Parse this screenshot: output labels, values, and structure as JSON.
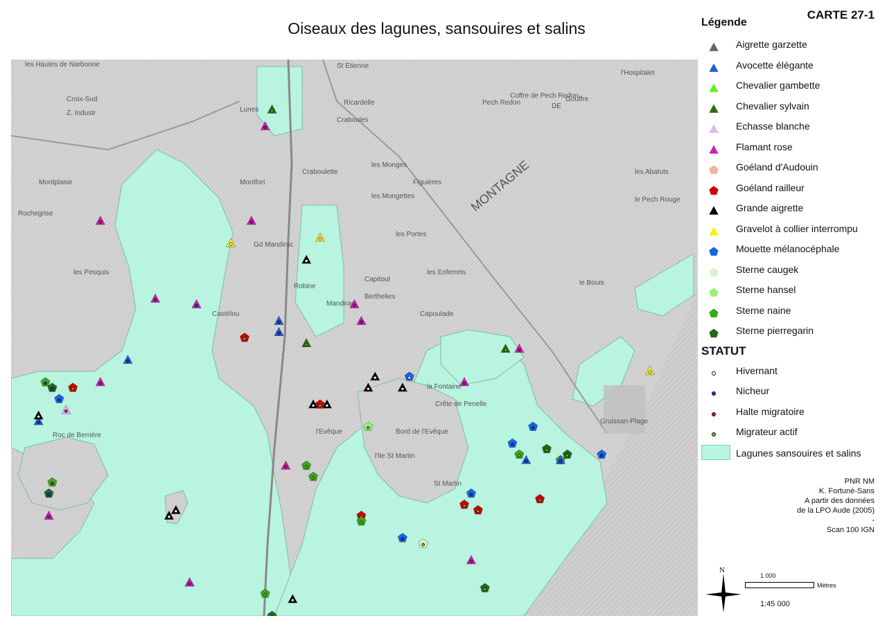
{
  "title": "Oiseaux des lagunes, sansouires et salins",
  "map_id": "CARTE 27-1",
  "legend": {
    "heading": "Légende",
    "species": [
      {
        "label": "Aigrette garzette",
        "shape": "triangle",
        "color": "#666666"
      },
      {
        "label": "Avocette élégante",
        "shape": "triangle",
        "color": "#1f5fd6"
      },
      {
        "label": "Chevalier gambette",
        "shape": "triangle",
        "color": "#66ee22"
      },
      {
        "label": "Chevalier sylvain",
        "shape": "triangle",
        "color": "#2f6a10"
      },
      {
        "label": "Echasse blanche",
        "shape": "triangle",
        "color": "#e5b6f2"
      },
      {
        "label": "Flamant rose",
        "shape": "triangle",
        "color": "#d21db5"
      },
      {
        "label": "Goéland d'Audouin",
        "shape": "pentagon",
        "color": "#f6b0a6"
      },
      {
        "label": "Goéland railleur",
        "shape": "pentagon",
        "color": "#cc0000"
      },
      {
        "label": "Grande aigrette",
        "shape": "triangle",
        "color": "#000000"
      },
      {
        "label": "Gravelot à collier interrompu",
        "shape": "triangle",
        "color": "#ffee00"
      },
      {
        "label": "Mouette mélanocéphale",
        "shape": "pentagon",
        "color": "#1466e6"
      },
      {
        "label": "Sterne caugek",
        "shape": "pentagon",
        "color": "#d8f5c8"
      },
      {
        "label": "Sterne hansel",
        "shape": "pentagon",
        "color": "#99f07a"
      },
      {
        "label": "Sterne naine",
        "shape": "pentagon",
        "color": "#3aa81a"
      },
      {
        "label": "Sterne pierregarin",
        "shape": "pentagon",
        "color": "#25661a"
      }
    ],
    "status_heading": "STATUT",
    "statuses": [
      {
        "label": "Hivernant",
        "color": "#ffffff"
      },
      {
        "label": "Nicheur",
        "color": "#1a3ccf"
      },
      {
        "label": "Halte migratoire",
        "color": "#b01590"
      },
      {
        "label": "Migrateur actif",
        "color": "#6ec020"
      }
    ],
    "area_label": "Lagunes sansouires et salins",
    "area_color": "#b8f4e0"
  },
  "credits": [
    "PNR NM",
    "K. Fortuné-Sans",
    "A partir des données",
    "de la LPO Aude (2005)",
    "-",
    "Scan 100 IGN"
  ],
  "north_label": "N",
  "scale": {
    "distance": "1 000",
    "unit": "Mètres",
    "ratio": "1:45 000"
  },
  "map_labels": [
    "les Hautes de Narbonne",
    "Croix-Sud",
    "Z. Industr",
    "Lunes",
    "St Etienne",
    "Ricardelle",
    "Craboules",
    "Gouffre",
    "l'Hospitalet",
    "Pech Redon",
    "Coffre de Pech Redon",
    "DE",
    "les Monges",
    "Figuières",
    "les Mongettes",
    "Montplaisir",
    "Rochegrise",
    "Craboulette",
    "Montfort",
    "Gd Mandirac",
    "MONTAGNE",
    "les Portes",
    "les Enferrets",
    "Capitoul",
    "Berthelies",
    "les Pesquis",
    "Castélou",
    "Mandirac",
    "Capoulade",
    "la Fontaine",
    "Crête de Penelle",
    "Gruissan-Plage",
    "Roc de Berrière",
    "l'Ile St Martin",
    "Bord de l'Evêque",
    "les Abatuts",
    "le Pech Rouge",
    "le Bouis",
    "l'Evêque",
    "Robine",
    "St Martin"
  ],
  "observations": [
    {
      "species": 13,
      "status": 1,
      "lon": 0.05,
      "lat": 0.58
    },
    {
      "species": 14,
      "status": 1,
      "lon": 0.06,
      "lat": 0.59
    },
    {
      "species": 10,
      "status": 1,
      "lon": 0.07,
      "lat": 0.61
    },
    {
      "species": 4,
      "status": 2,
      "lon": 0.08,
      "lat": 0.63
    },
    {
      "species": 7,
      "status": 3,
      "lon": 0.09,
      "lat": 0.59
    },
    {
      "species": 1,
      "status": 1,
      "lon": 0.04,
      "lat": 0.65
    },
    {
      "species": 8,
      "status": 0,
      "lon": 0.04,
      "lat": 0.64
    },
    {
      "species": 13,
      "status": 2,
      "lon": 0.06,
      "lat": 0.76
    },
    {
      "species": 14,
      "status": 1,
      "lon": 0.055,
      "lat": 0.78
    },
    {
      "species": 5,
      "status": 2,
      "lon": 0.055,
      "lat": 0.82
    },
    {
      "species": 5,
      "status": 2,
      "lon": 0.21,
      "lat": 0.43
    },
    {
      "species": 5,
      "status": 1,
      "lon": 0.27,
      "lat": 0.44
    },
    {
      "species": 9,
      "status": 0,
      "lon": 0.32,
      "lat": 0.33
    },
    {
      "species": 5,
      "status": 2,
      "lon": 0.35,
      "lat": 0.29
    },
    {
      "species": 8,
      "status": 0,
      "lon": 0.43,
      "lat": 0.36
    },
    {
      "species": 1,
      "status": 1,
      "lon": 0.39,
      "lat": 0.47
    },
    {
      "species": 3,
      "status": 3,
      "lon": 0.43,
      "lat": 0.51
    },
    {
      "species": 7,
      "status": 3,
      "lon": 0.34,
      "lat": 0.5
    },
    {
      "species": 5,
      "status": 2,
      "lon": 0.5,
      "lat": 0.44
    },
    {
      "species": 5,
      "status": 2,
      "lon": 0.51,
      "lat": 0.47
    },
    {
      "species": 8,
      "status": 0,
      "lon": 0.44,
      "lat": 0.62
    },
    {
      "species": 8,
      "status": 0,
      "lon": 0.46,
      "lat": 0.62
    },
    {
      "species": 7,
      "status": 3,
      "lon": 0.45,
      "lat": 0.62
    },
    {
      "species": 8,
      "status": 0,
      "lon": 0.52,
      "lat": 0.59
    },
    {
      "species": 8,
      "status": 0,
      "lon": 0.53,
      "lat": 0.57
    },
    {
      "species": 8,
      "status": 0,
      "lon": 0.57,
      "lat": 0.59
    },
    {
      "species": 10,
      "status": 0,
      "lon": 0.58,
      "lat": 0.57
    },
    {
      "species": 5,
      "status": 2,
      "lon": 0.66,
      "lat": 0.58
    },
    {
      "species": 3,
      "status": 3,
      "lon": 0.72,
      "lat": 0.52
    },
    {
      "species": 13,
      "status": 3,
      "lon": 0.43,
      "lat": 0.73
    },
    {
      "species": 13,
      "status": 3,
      "lon": 0.44,
      "lat": 0.75
    },
    {
      "species": 5,
      "status": 2,
      "lon": 0.4,
      "lat": 0.73
    },
    {
      "species": 7,
      "status": 3,
      "lon": 0.51,
      "lat": 0.82
    },
    {
      "species": 13,
      "status": 3,
      "lon": 0.51,
      "lat": 0.83
    },
    {
      "species": 10,
      "status": 1,
      "lon": 0.57,
      "lat": 0.86
    },
    {
      "species": 10,
      "status": 1,
      "lon": 0.73,
      "lat": 0.69
    },
    {
      "species": 13,
      "status": 3,
      "lon": 0.74,
      "lat": 0.71
    },
    {
      "species": 1,
      "status": 1,
      "lon": 0.75,
      "lat": 0.72
    },
    {
      "species": 10,
      "status": 1,
      "lon": 0.76,
      "lat": 0.66
    },
    {
      "species": 14,
      "status": 3,
      "lon": 0.78,
      "lat": 0.7
    },
    {
      "species": 7,
      "status": 3,
      "lon": 0.77,
      "lat": 0.79
    },
    {
      "species": 7,
      "status": 3,
      "lon": 0.66,
      "lat": 0.8
    },
    {
      "species": 7,
      "status": 3,
      "lon": 0.68,
      "lat": 0.81
    },
    {
      "species": 10,
      "status": 1,
      "lon": 0.67,
      "lat": 0.78
    },
    {
      "species": 13,
      "status": 3,
      "lon": 0.8,
      "lat": 0.72
    },
    {
      "species": 14,
      "status": 3,
      "lon": 0.81,
      "lat": 0.71
    },
    {
      "species": 1,
      "status": 1,
      "lon": 0.8,
      "lat": 0.72
    },
    {
      "species": 10,
      "status": 1,
      "lon": 0.86,
      "lat": 0.71
    },
    {
      "species": 9,
      "status": 0,
      "lon": 0.93,
      "lat": 0.56
    },
    {
      "species": 5,
      "status": 2,
      "lon": 0.74,
      "lat": 0.52
    },
    {
      "species": 8,
      "status": 0,
      "lon": 0.23,
      "lat": 0.82
    },
    {
      "species": 8,
      "status": 0,
      "lon": 0.24,
      "lat": 0.81
    },
    {
      "species": 5,
      "status": 2,
      "lon": 0.26,
      "lat": 0.94
    },
    {
      "species": 13,
      "status": 3,
      "lon": 0.37,
      "lat": 0.96
    },
    {
      "species": 8,
      "status": 0,
      "lon": 0.41,
      "lat": 0.97
    },
    {
      "species": 14,
      "status": 3,
      "lon": 0.38,
      "lat": 1.0
    },
    {
      "species": 14,
      "status": 3,
      "lon": 0.69,
      "lat": 0.95
    },
    {
      "species": 5,
      "status": 2,
      "lon": 0.67,
      "lat": 0.9
    },
    {
      "species": 11,
      "status": 3,
      "lon": 0.6,
      "lat": 0.87
    },
    {
      "species": 12,
      "status": 3,
      "lon": 0.52,
      "lat": 0.66
    },
    {
      "species": 1,
      "status": 1,
      "lon": 0.39,
      "lat": 0.49
    },
    {
      "species": 5,
      "status": 2,
      "lon": 0.26,
      "lat": 0.94
    },
    {
      "species": 9,
      "status": 0,
      "lon": 0.45,
      "lat": 0.32
    },
    {
      "species": 5,
      "status": 2,
      "lon": 0.37,
      "lat": 0.12
    },
    {
      "species": 3,
      "status": 3,
      "lon": 0.38,
      "lat": 0.09
    },
    {
      "species": 5,
      "status": 2,
      "lon": 0.13,
      "lat": 0.58
    },
    {
      "species": 5,
      "status": 2,
      "lon": 0.13,
      "lat": 0.29
    },
    {
      "species": 1,
      "status": 1,
      "lon": 0.17,
      "lat": 0.54
    }
  ]
}
